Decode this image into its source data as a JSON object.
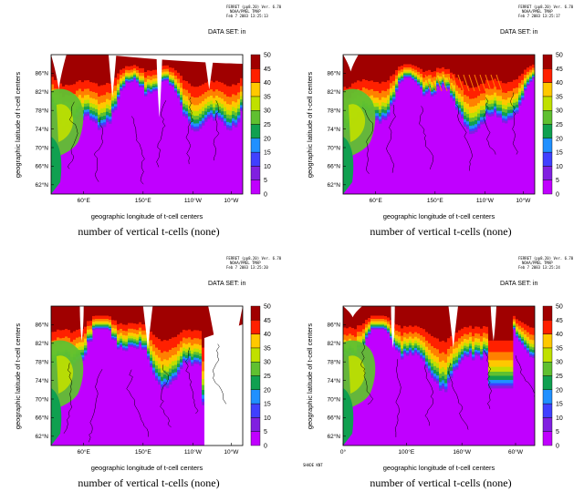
{
  "colors": {
    "levels": [
      "#c000ff",
      "#8020e0",
      "#4040ff",
      "#2090ff",
      "#10a050",
      "#60c030",
      "#c0e000",
      "#ffc800",
      "#ff8000",
      "#ff2000",
      "#a00000"
    ],
    "land_line": "#000000"
  },
  "panels": [
    {
      "hdr": [
        "FERRET (pp8.20) Ver. 6.70",
        "NOAA/PMEL TMAP",
        "Feb 7 2083 13:25:13"
      ],
      "dataset": "DATA SET: in",
      "xticks": [
        "60°E",
        "150°E",
        "110°W",
        "10°W"
      ],
      "yticks": [
        "62°N",
        "66°N",
        "70°N",
        "74°N",
        "78°N",
        "82°N",
        "86°N"
      ],
      "xlabel": "geographic longitude of t-cell centers",
      "ylabel": "geographic latitude of t-cell centers",
      "caption": "number of vertical t-cells (none)"
    },
    {
      "hdr": [
        "FERRET (pp8.20) Ver. 6.70",
        "NOAA/PMEL TMAP",
        "Feb 7 2083 13:25:17"
      ],
      "dataset": "DATA SET: in",
      "xticks": [
        "60°E",
        "150°E",
        "110°W",
        "10°W"
      ],
      "yticks": [
        "62°N",
        "66°N",
        "70°N",
        "74°N",
        "78°N",
        "82°N",
        "86°N"
      ],
      "xlabel": "geographic longitude of t-cell centers",
      "ylabel": "geographic latitude of t-cell centers",
      "caption": "number of vertical t-cells (none)"
    },
    {
      "hdr": [
        "FERRET (pp8.20) Ver. 6.70",
        "NOAA/PMEL TMAP",
        "Feb 7 2083 13:25:20"
      ],
      "dataset": "DATA SET: in",
      "xticks": [
        "60°E",
        "150°E",
        "110°W",
        "10°W"
      ],
      "yticks": [
        "62°N",
        "66°N",
        "70°N",
        "74°N",
        "78°N",
        "82°N",
        "86°N"
      ],
      "xlabel": "geographic longitude of t-cell centers",
      "ylabel": "geographic latitude of t-cell centers",
      "caption": "number of vertical t-cells (none)"
    },
    {
      "hdr": [
        "FERRET (pp8.20) Ver. 6.70",
        "NOAA/PMEL TMAP",
        "Feb 7 2083 13:25:24"
      ],
      "dataset": "DATA SET: in",
      "xticks": [
        "0°",
        "100°E",
        "160°W",
        "60°W"
      ],
      "yticks": [
        "62°N",
        "66°N",
        "70°N",
        "74°N",
        "78°N",
        "82°N",
        "86°N"
      ],
      "xlabel": "geographic longitude of t-cell centers",
      "ylabel": "geographic latitude of t-cell centers",
      "caption": "number of vertical t-cells (none)",
      "footnote": "SHADE KNT"
    }
  ],
  "chart_data": [
    {
      "type": "heatmap",
      "ylim": [
        60,
        90
      ],
      "colorbar": {
        "min": 0,
        "max": 50,
        "step": 5,
        "labels": [
          "0",
          "5",
          "10",
          "15",
          "20",
          "25",
          "30",
          "35",
          "40",
          "45",
          "50"
        ]
      }
    },
    {
      "type": "heatmap",
      "ylim": [
        60,
        90
      ],
      "colorbar": {
        "min": 0,
        "max": 50,
        "step": 5,
        "labels": [
          "0",
          "5",
          "10",
          "15",
          "20",
          "25",
          "30",
          "35",
          "40",
          "45",
          "50"
        ]
      }
    },
    {
      "type": "heatmap",
      "ylim": [
        60,
        90
      ],
      "colorbar": {
        "min": 0,
        "max": 50,
        "step": 5,
        "labels": [
          "0",
          "5",
          "10",
          "15",
          "20",
          "25",
          "30",
          "35",
          "40",
          "45",
          "50"
        ]
      }
    },
    {
      "type": "heatmap",
      "ylim": [
        60,
        90
      ],
      "colorbar": {
        "min": 0,
        "max": 50,
        "step": 5,
        "labels": [
          "0",
          "5",
          "10",
          "15",
          "20",
          "25",
          "30",
          "35",
          "40",
          "45",
          "50"
        ]
      }
    }
  ]
}
